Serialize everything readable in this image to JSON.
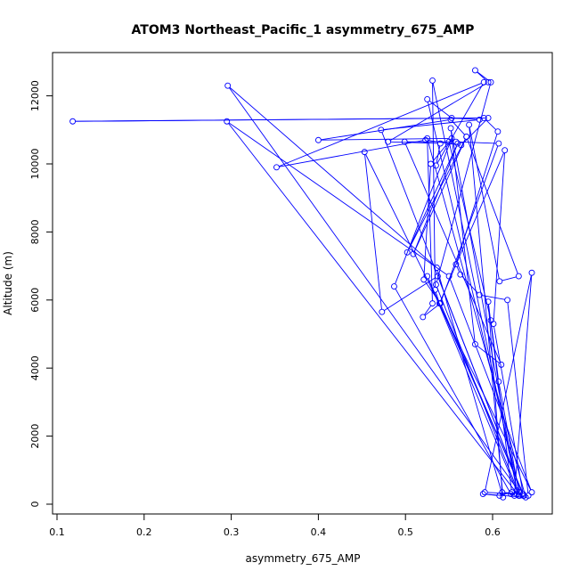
{
  "chart_data": {
    "type": "line",
    "title": "ATOM3 Northeast_Pacific_1 asymmetry_675_AMP",
    "xlabel": "asymmetry_675_AMP",
    "ylabel": "Altitude (m)",
    "xlim": [
      0.1,
      0.65
    ],
    "ylim": [
      0,
      13000
    ],
    "x_ticks": [
      0.1,
      0.2,
      0.3,
      0.4,
      0.5,
      0.6
    ],
    "y_ticks": [
      0,
      2000,
      4000,
      6000,
      8000,
      10000,
      12000
    ],
    "grid": false,
    "legend": "none",
    "colors": {
      "series": "#0000ff",
      "axis": "#000000"
    },
    "series": [
      {
        "points": [
          [
            0.641,
            250
          ],
          [
            0.617,
            6000
          ],
          [
            0.585,
            6150
          ],
          [
            0.563,
            6750
          ],
          [
            0.558,
            7050
          ],
          [
            0.606,
            10950
          ],
          [
            0.59,
            11350
          ],
          [
            0.118,
            11250
          ],
          [
            0.595,
            11350
          ],
          [
            0.564,
            10550
          ],
          [
            0.523,
            10700
          ],
          [
            0.352,
            9900
          ],
          [
            0.59,
            12400
          ],
          [
            0.535,
            9950
          ],
          [
            0.54,
            10600
          ],
          [
            0.48,
            10650
          ],
          [
            0.595,
            12400
          ],
          [
            0.58,
            12750
          ],
          [
            0.598,
            12400
          ],
          [
            0.535,
            6450
          ],
          [
            0.631,
            250
          ],
          [
            0.607,
            3600
          ],
          [
            0.598,
            5400
          ],
          [
            0.55,
            10650
          ],
          [
            0.529,
            10000
          ],
          [
            0.521,
            6600
          ],
          [
            0.54,
            5900
          ],
          [
            0.607,
            10600
          ],
          [
            0.558,
            10650
          ],
          [
            0.499,
            10650
          ],
          [
            0.61,
            4100
          ],
          [
            0.58,
            4700
          ],
          [
            0.552,
            11050
          ],
          [
            0.628,
            400
          ],
          [
            0.531,
            12450
          ],
          [
            0.534,
            6300
          ],
          [
            0.539,
            5900
          ],
          [
            0.614,
            10400
          ],
          [
            0.601,
            5300
          ],
          [
            0.635,
            300
          ],
          [
            0.611,
            350
          ],
          [
            0.595,
            5950
          ],
          [
            0.622,
            350
          ],
          [
            0.608,
            250
          ],
          [
            0.589,
            300
          ],
          [
            0.638,
            200
          ],
          [
            0.525,
            10750
          ],
          [
            0.531,
            5900
          ],
          [
            0.52,
            5500
          ],
          [
            0.54,
            5900
          ],
          [
            0.636,
            250
          ],
          [
            0.525,
            6700
          ],
          [
            0.63,
            250
          ],
          [
            0.295,
            11250
          ],
          [
            0.55,
            6700
          ],
          [
            0.645,
            350
          ],
          [
            0.453,
            10350
          ],
          [
            0.473,
            5650
          ],
          [
            0.537,
            6700
          ],
          [
            0.635,
            250
          ],
          [
            0.472,
            11000
          ],
          [
            0.585,
            11300
          ],
          [
            0.553,
            11350
          ],
          [
            0.525,
            11900
          ],
          [
            0.631,
            350
          ],
          [
            0.296,
            12300
          ],
          [
            0.536,
            6950
          ],
          [
            0.612,
            200
          ],
          [
            0.573,
            11150
          ],
          [
            0.608,
            6550
          ],
          [
            0.63,
            6700
          ],
          [
            0.57,
            10800
          ],
          [
            0.502,
            7400
          ],
          [
            0.56,
            10600
          ],
          [
            0.509,
            7350
          ],
          [
            0.57,
            10800
          ],
          [
            0.552,
            11300
          ],
          [
            0.4,
            10700
          ],
          [
            0.553,
            10750
          ],
          [
            0.487,
            6400
          ],
          [
            0.621,
            300
          ],
          [
            0.625,
            250
          ],
          [
            0.645,
            6800
          ],
          [
            0.591,
            350
          ],
          [
            0.628,
            300
          ]
        ]
      }
    ]
  }
}
